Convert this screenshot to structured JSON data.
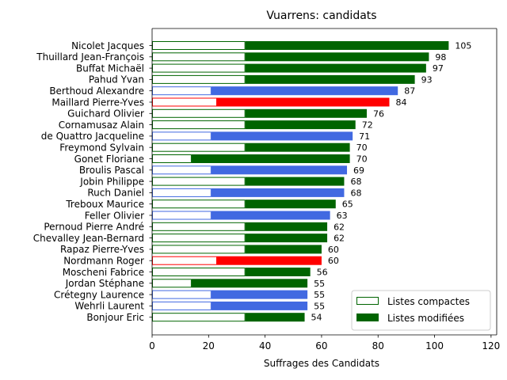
{
  "chart_data": {
    "type": "bar",
    "orientation": "horizontal",
    "title": "Vuarrens: candidats",
    "xlabel": "Suffrages des Candidats",
    "ylabel": "",
    "xlim": [
      0,
      122
    ],
    "xticks": [
      0,
      20,
      40,
      60,
      80,
      100,
      120
    ],
    "legend": {
      "placement": "bottom-right",
      "entries": [
        {
          "label": "Listes compactes",
          "style": "outline",
          "color": "#006400"
        },
        {
          "label": "Listes modifiées",
          "style": "filled",
          "color": "#006400"
        }
      ]
    },
    "candidates": [
      {
        "name": "Nicolet Jacques",
        "total": 105,
        "compact": 33,
        "color": "#006400"
      },
      {
        "name": "Thuillard Jean-François",
        "total": 98,
        "compact": 33,
        "color": "#006400"
      },
      {
        "name": "Buffat Michaël",
        "total": 97,
        "compact": 33,
        "color": "#006400"
      },
      {
        "name": "Pahud Yvan",
        "total": 93,
        "compact": 33,
        "color": "#006400"
      },
      {
        "name": "Berthoud Alexandre",
        "total": 87,
        "compact": 21,
        "color": "#4169e1"
      },
      {
        "name": "Maillard Pierre-Yves",
        "total": 84,
        "compact": 23,
        "color": "#ff0000"
      },
      {
        "name": "Guichard Olivier",
        "total": 76,
        "compact": 33,
        "color": "#006400"
      },
      {
        "name": "Cornamusaz Alain",
        "total": 72,
        "compact": 33,
        "color": "#006400"
      },
      {
        "name": "de Quattro Jacqueline",
        "total": 71,
        "compact": 21,
        "color": "#4169e1"
      },
      {
        "name": "Freymond Sylvain",
        "total": 70,
        "compact": 33,
        "color": "#006400"
      },
      {
        "name": "Gonet Floriane",
        "total": 70,
        "compact": 14,
        "color": "#006400"
      },
      {
        "name": "Broulis Pascal",
        "total": 69,
        "compact": 21,
        "color": "#4169e1"
      },
      {
        "name": "Jobin Philippe",
        "total": 68,
        "compact": 33,
        "color": "#006400"
      },
      {
        "name": "Ruch Daniel",
        "total": 68,
        "compact": 21,
        "color": "#4169e1"
      },
      {
        "name": "Treboux Maurice",
        "total": 65,
        "compact": 33,
        "color": "#006400"
      },
      {
        "name": "Feller Olivier",
        "total": 63,
        "compact": 21,
        "color": "#4169e1"
      },
      {
        "name": "Pernoud Pierre André",
        "total": 62,
        "compact": 33,
        "color": "#006400"
      },
      {
        "name": "Chevalley Jean-Bernard",
        "total": 62,
        "compact": 33,
        "color": "#006400"
      },
      {
        "name": "Rapaz Pierre-Yves",
        "total": 60,
        "compact": 33,
        "color": "#006400"
      },
      {
        "name": "Nordmann Roger",
        "total": 60,
        "compact": 23,
        "color": "#ff0000"
      },
      {
        "name": "Moscheni Fabrice",
        "total": 56,
        "compact": 33,
        "color": "#006400"
      },
      {
        "name": "Jordan Stéphane",
        "total": 55,
        "compact": 14,
        "color": "#006400"
      },
      {
        "name": "Crétegny Laurence",
        "total": 55,
        "compact": 21,
        "color": "#4169e1"
      },
      {
        "name": "Wehrli Laurent",
        "total": 55,
        "compact": 21,
        "color": "#4169e1"
      },
      {
        "name": "Bonjour Eric",
        "total": 54,
        "compact": 33,
        "color": "#006400"
      }
    ]
  }
}
